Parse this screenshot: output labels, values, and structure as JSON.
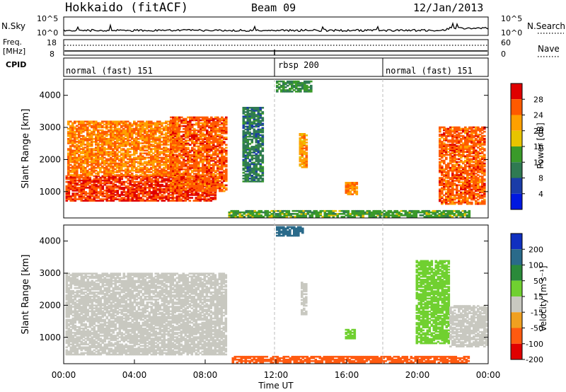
{
  "header": {
    "station": "Hokkaido (fitACF)",
    "beam": "Beam 09",
    "date": "12/Jan/2013"
  },
  "noise_panel": {
    "left_label": "N.Sky",
    "right_label": "N.Search",
    "left_ticks": [
      "10^5",
      "10^0"
    ],
    "right_ticks": [
      "10^5",
      "10^0"
    ]
  },
  "freq_panel": {
    "left_label_1": "Freq.",
    "left_label_2": "[MHz]",
    "right_label": "Nave",
    "left_ticks": [
      "18",
      "8"
    ],
    "right_ticks": [
      "60",
      "0"
    ]
  },
  "cpid_panel": {
    "label": "CPID",
    "programs": [
      {
        "name": "normal (fast) 151",
        "start_hour": 0,
        "end_hour": 11.9
      },
      {
        "name": "rbsp 200",
        "start_hour": 11.9,
        "end_hour": 18.0
      },
      {
        "name": "normal (fast) 151",
        "start_hour": 18.0,
        "end_hour": 24
      }
    ]
  },
  "power_panel": {
    "ylabel": "Slant Range [km]",
    "yticks": [
      "4000",
      "3000",
      "2000",
      "1000"
    ],
    "colorbar_label": "Power [dB]",
    "colorbar_ticks": [
      "28",
      "24",
      "20",
      "16",
      "12",
      "8",
      "4"
    ],
    "colorbar_colors": [
      "#e00000",
      "#ff5a00",
      "#ffa000",
      "#e8c400",
      "#3a9a2a",
      "#2f7a52",
      "#1a3ca8",
      "#0018e0"
    ]
  },
  "velocity_panel": {
    "ylabel": "Slant Range [km]",
    "yticks": [
      "4000",
      "3000",
      "2000",
      "1000"
    ],
    "colorbar_label": "Velocity [m s⁻¹]",
    "colorbar_ticks": [
      "200",
      "100",
      "50",
      "15",
      "-15",
      "-50",
      "-100",
      "-200"
    ],
    "colorbar_colors": [
      "#1030c0",
      "#2a6a8a",
      "#2a8a3a",
      "#70d030",
      "#c8c8c0",
      "#f0a020",
      "#ff5a10",
      "#e00000"
    ]
  },
  "xaxis": {
    "ticks": [
      "00:00",
      "04:00",
      "08:00",
      "12:00",
      "16:00",
      "20:00",
      "00:00"
    ],
    "label": "Time UT"
  },
  "chart_data": {
    "type": "heatmap",
    "x_range_hours": [
      0,
      24
    ],
    "y_range_km": [
      180,
      4500
    ],
    "note_markers_hours": [
      11.9,
      18.0
    ],
    "power_regions": [
      {
        "t0": 0.1,
        "t1": 8.6,
        "r0": 700,
        "r1": 1500,
        "power_db": 28
      },
      {
        "t0": 0.2,
        "t1": 6.5,
        "r0": 1500,
        "r1": 3200,
        "power_db": 24
      },
      {
        "t0": 6.0,
        "t1": 9.2,
        "r0": 1000,
        "r1": 3300,
        "power_db": 26
      },
      {
        "t0": 9.3,
        "t1": 22.9,
        "r0": 200,
        "r1": 420,
        "power_db": 14
      },
      {
        "t0": 10.1,
        "t1": 11.2,
        "r0": 1300,
        "r1": 3600,
        "power_db": 10
      },
      {
        "t0": 12.0,
        "t1": 14.0,
        "r0": 4100,
        "r1": 4450,
        "power_db": 12
      },
      {
        "t0": 13.3,
        "t1": 13.7,
        "r0": 1700,
        "r1": 2800,
        "power_db": 22
      },
      {
        "t0": 15.9,
        "t1": 16.6,
        "r0": 900,
        "r1": 1300,
        "power_db": 24
      },
      {
        "t0": 21.2,
        "t1": 23.8,
        "r0": 600,
        "r1": 3000,
        "power_db": 26
      }
    ],
    "velocity_regions": [
      {
        "t0": 0.1,
        "t1": 9.2,
        "r0": 450,
        "r1": 3000,
        "velocity": 0
      },
      {
        "t0": 9.5,
        "t1": 22.9,
        "r0": 200,
        "r1": 420,
        "velocity": -60
      },
      {
        "t0": 12.0,
        "t1": 13.5,
        "r0": 4150,
        "r1": 4450,
        "velocity": 150
      },
      {
        "t0": 13.4,
        "t1": 13.7,
        "r0": 1700,
        "r1": 2700,
        "velocity": 0
      },
      {
        "t0": 15.9,
        "t1": 16.5,
        "r0": 950,
        "r1": 1250,
        "velocity": 30
      },
      {
        "t0": 19.9,
        "t1": 21.8,
        "r0": 800,
        "r1": 3400,
        "velocity": 30
      },
      {
        "t0": 21.8,
        "t1": 23.9,
        "r0": 700,
        "r1": 2000,
        "velocity": 0
      }
    ]
  }
}
